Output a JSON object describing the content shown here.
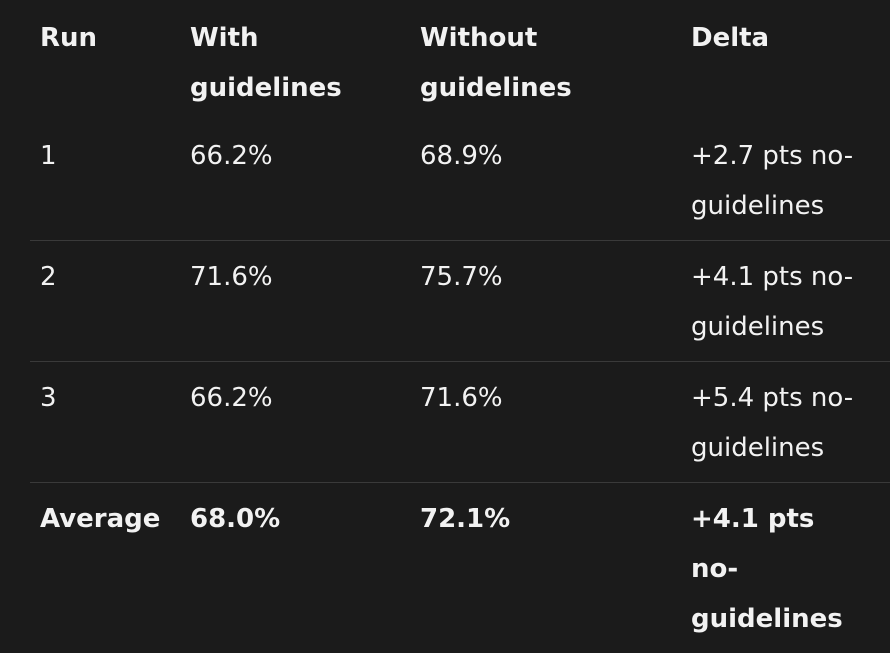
{
  "table": {
    "columns": [
      "Run",
      "With guidelines",
      "Without guidelines",
      "Delta"
    ],
    "rows": [
      [
        "1",
        "66.2%",
        "68.9%",
        "+2.7 pts no-guidelines"
      ],
      [
        "2",
        "71.6%",
        "75.7%",
        "+4.1 pts no-guidelines"
      ],
      [
        "3",
        "66.2%",
        "71.6%",
        "+5.4 pts no-guidelines"
      ],
      [
        "Average",
        "68.0%",
        "72.1%",
        "+4.1 pts no-guidelines"
      ]
    ]
  }
}
